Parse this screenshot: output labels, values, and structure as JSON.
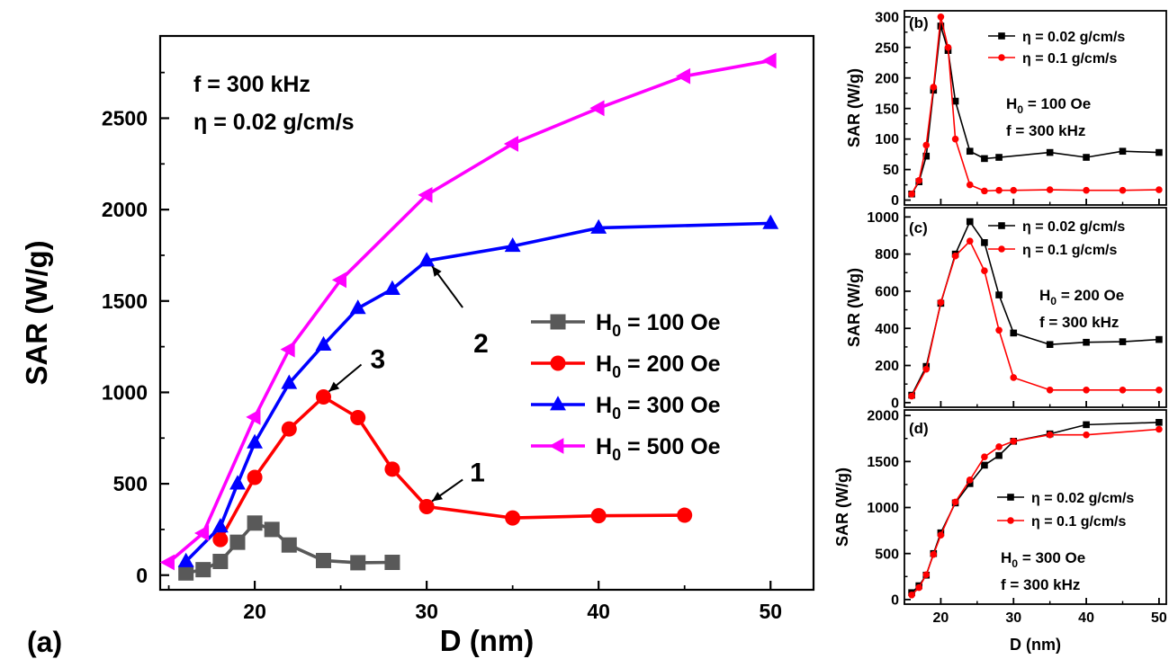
{
  "chart_data": [
    {
      "panel": "(a)",
      "type": "line",
      "xlabel": "D  (nm)",
      "ylabel": "SAR  (W/g)",
      "xlim": [
        14.5,
        52.5
      ],
      "ylim": [
        -80,
        2950
      ],
      "xticks": [
        20,
        30,
        40,
        50
      ],
      "yticks": [
        0,
        500,
        1000,
        1500,
        2000,
        2500
      ],
      "params": [
        "f = 300 kHz",
        "η = 0.02 g/cm/s"
      ],
      "legend_position": "center-right",
      "series": [
        {
          "name": "H0 = 100 Oe",
          "label_main": "H",
          "label_sub": "0",
          "label_rest": " = 100 Oe",
          "color": "#595959",
          "marker": "square",
          "x": [
            16,
            17,
            18,
            19,
            20,
            21,
            22,
            24,
            26,
            28
          ],
          "y": [
            12,
            30,
            75,
            180,
            285,
            250,
            165,
            80,
            68,
            70
          ]
        },
        {
          "name": "H0 = 200 Oe",
          "label_main": "H",
          "label_sub": "0",
          "label_rest": " = 200 Oe",
          "color": "#ff0000",
          "marker": "circle",
          "x": [
            18,
            20,
            22,
            24,
            26,
            28,
            30,
            35,
            40,
            45
          ],
          "y": [
            195,
            535,
            800,
            975,
            862,
            580,
            375,
            313,
            325,
            328
          ]
        },
        {
          "name": "H0 = 300 Oe",
          "label_main": "H",
          "label_sub": "0",
          "label_rest": " = 300 Oe",
          "color": "#0000ff",
          "marker": "triangle-up",
          "x": [
            16,
            18,
            19,
            20,
            22,
            24,
            26,
            28,
            30,
            35,
            40,
            50
          ],
          "y": [
            75,
            265,
            500,
            725,
            1050,
            1260,
            1460,
            1565,
            1720,
            1800,
            1900,
            1925
          ]
        },
        {
          "name": "H0 = 500 Oe",
          "label_main": "H",
          "label_sub": "0",
          "label_rest": " = 500 Oe",
          "color": "#ff00ff",
          "marker": "triangle-left",
          "x": [
            15,
            17,
            20,
            22,
            25,
            30,
            35,
            40,
            45,
            50
          ],
          "y": [
            70,
            230,
            865,
            1235,
            1615,
            2080,
            2360,
            2555,
            2730,
            2815
          ]
        }
      ],
      "annotations": [
        {
          "text": "1",
          "x": 30,
          "y": 375
        },
        {
          "text": "2",
          "x": 30,
          "y": 1720
        },
        {
          "text": "3",
          "x": 24,
          "y": 975
        }
      ]
    },
    {
      "panel": "(b)",
      "type": "line",
      "xlabel": "",
      "ylabel": "SAR  (W/g)",
      "xlim": [
        15,
        51
      ],
      "ylim": [
        -8,
        310
      ],
      "yticks": [
        0,
        50,
        100,
        150,
        200,
        250,
        300
      ],
      "params": [
        "H0 = 100 Oe",
        "f = 300 kHz"
      ],
      "legend_position": "top-right",
      "series": [
        {
          "name": "η = 0.02 g/cm/s",
          "color": "#000000",
          "marker": "square",
          "x": [
            16,
            17,
            18,
            19,
            20,
            21,
            22,
            24,
            26,
            28,
            35,
            40,
            45,
            50
          ],
          "y": [
            10,
            30,
            72,
            180,
            285,
            245,
            162,
            80,
            68,
            70,
            78,
            70,
            80,
            78
          ]
        },
        {
          "name": "η = 0.1 g/cm/s",
          "color": "#ff0000",
          "marker": "circle",
          "x": [
            16,
            17,
            18,
            19,
            20,
            21,
            22,
            24,
            26,
            28,
            30,
            35,
            40,
            45,
            50
          ],
          "y": [
            10,
            32,
            90,
            185,
            300,
            250,
            100,
            25,
            15,
            16,
            16,
            17,
            16,
            16,
            17
          ]
        }
      ]
    },
    {
      "panel": "(c)",
      "type": "line",
      "xlabel": "",
      "ylabel": "SAR  (W/g)",
      "xlim": [
        15,
        51
      ],
      "ylim": [
        -25,
        1050
      ],
      "yticks": [
        0,
        200,
        400,
        600,
        800,
        1000
      ],
      "params": [
        "H0 = 200 Oe",
        "f = 300 kHz"
      ],
      "legend_position": "top-right",
      "series": [
        {
          "name": "η = 0.02 g/cm/s",
          "color": "#000000",
          "marker": "square",
          "x": [
            16,
            18,
            20,
            22,
            24,
            26,
            28,
            30,
            35,
            40,
            45,
            50
          ],
          "y": [
            40,
            195,
            535,
            800,
            975,
            862,
            580,
            375,
            313,
            325,
            328,
            340
          ]
        },
        {
          "name": "η = 0.1 g/cm/s",
          "color": "#ff0000",
          "marker": "circle",
          "x": [
            16,
            18,
            20,
            22,
            24,
            26,
            28,
            30,
            35,
            40,
            45,
            50
          ],
          "y": [
            35,
            180,
            540,
            790,
            870,
            710,
            390,
            135,
            68,
            68,
            68,
            68
          ]
        }
      ]
    },
    {
      "panel": "(d)",
      "type": "line",
      "xlabel": "D  (nm)",
      "ylabel": "SAR  (W/g)",
      "xlim": [
        15,
        51
      ],
      "ylim": [
        -50,
        2060
      ],
      "xticks": [
        20,
        30,
        40,
        50
      ],
      "yticks": [
        0,
        500,
        1000,
        1500,
        2000
      ],
      "params": [
        "H0 = 300 Oe",
        "f = 300 kHz"
      ],
      "legend_position": "center-right",
      "series": [
        {
          "name": "η = 0.02 g/cm/s",
          "color": "#000000",
          "marker": "square",
          "x": [
            16,
            17,
            18,
            19,
            20,
            22,
            24,
            26,
            28,
            30,
            35,
            40,
            50
          ],
          "y": [
            75,
            150,
            265,
            500,
            725,
            1050,
            1260,
            1460,
            1565,
            1720,
            1800,
            1900,
            1925
          ]
        },
        {
          "name": "η = 0.1 g/cm/s",
          "color": "#ff0000",
          "marker": "circle",
          "x": [
            16,
            17,
            18,
            19,
            20,
            22,
            24,
            26,
            28,
            30,
            35,
            40,
            50
          ],
          "y": [
            50,
            130,
            270,
            490,
            700,
            1060,
            1300,
            1550,
            1660,
            1720,
            1790,
            1790,
            1850
          ]
        }
      ]
    }
  ]
}
